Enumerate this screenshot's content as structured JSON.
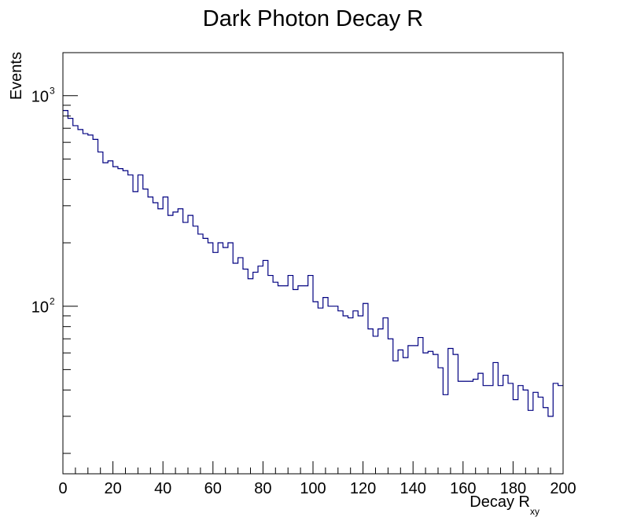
{
  "chart_data": {
    "type": "histogram",
    "title": "Dark Photon Decay R",
    "xlabel_main": "Decay R",
    "xlabel_sub": "xy",
    "ylabel": "Events",
    "xlim": [
      0,
      200
    ],
    "ylim": [
      16,
      1600
    ],
    "yscale": "log",
    "bin_width": 2,
    "x_ticks": [
      0,
      20,
      40,
      60,
      80,
      100,
      120,
      140,
      160,
      180,
      200
    ],
    "y_ticks": [
      {
        "value": 100,
        "base": "10",
        "exp": "2"
      },
      {
        "value": 1000,
        "base": "10",
        "exp": "3"
      }
    ],
    "line_color": "#000080",
    "values": [
      850,
      780,
      720,
      690,
      660,
      650,
      620,
      540,
      480,
      490,
      460,
      450,
      440,
      420,
      350,
      420,
      360,
      330,
      310,
      290,
      330,
      270,
      280,
      290,
      250,
      270,
      240,
      220,
      210,
      200,
      180,
      200,
      190,
      200,
      160,
      170,
      150,
      135,
      145,
      155,
      165,
      140,
      130,
      125,
      125,
      140,
      120,
      125,
      125,
      140,
      105,
      98,
      110,
      100,
      100,
      95,
      90,
      88,
      95,
      90,
      103,
      78,
      72,
      78,
      88,
      70,
      55,
      62,
      57,
      65,
      65,
      71,
      60,
      61,
      59,
      51,
      38,
      63,
      59,
      44,
      44,
      44,
      45,
      48,
      42,
      42,
      54,
      42,
      47,
      43,
      36,
      42,
      40,
      32,
      39,
      37,
      33,
      30,
      43,
      42
    ]
  }
}
